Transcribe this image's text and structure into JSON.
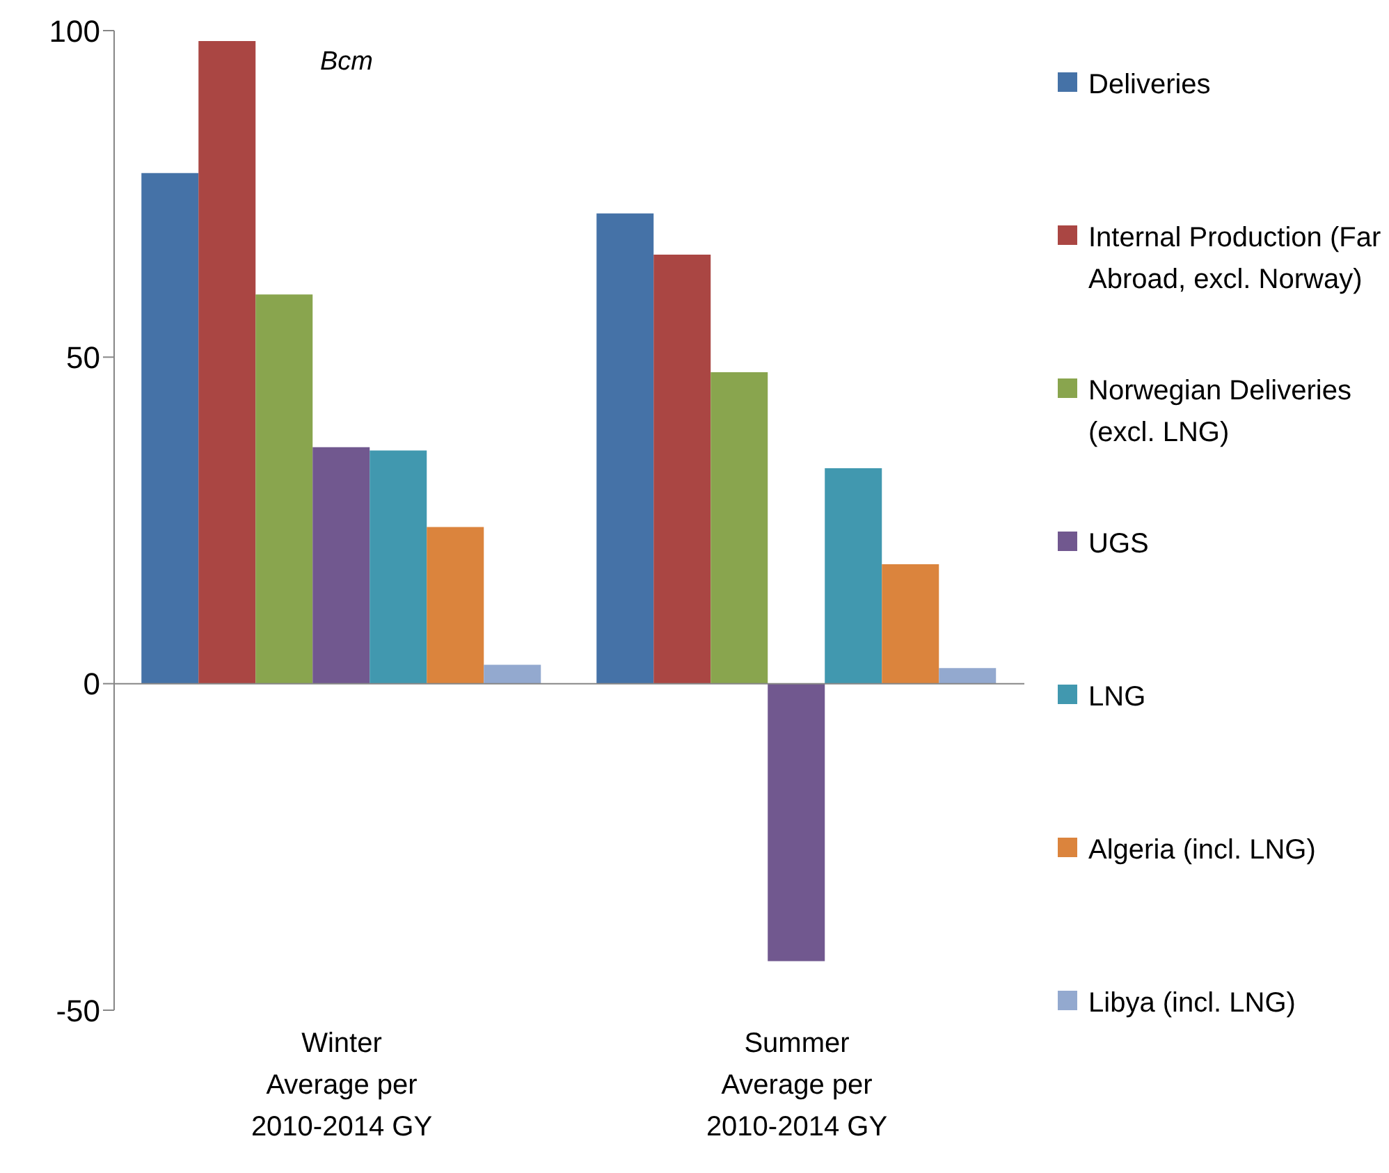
{
  "chart_data": {
    "type": "bar",
    "ylabel": "Bcm",
    "categories": [
      "Winter Average per 2010-2014 GY",
      "Summer Average per 2010-2014 GY"
    ],
    "series": [
      {
        "name": "Deliveries",
        "color": "#4572a7",
        "values": [
          78.2,
          72.0
        ]
      },
      {
        "name": "Internal Production (Far Abroad, excl. Norway)",
        "color": "#aa4643",
        "values": [
          98.4,
          65.7
        ]
      },
      {
        "name": "Norwegian Deliveries (excl. LNG)",
        "color": "#89a54e",
        "values": [
          59.6,
          47.7
        ]
      },
      {
        "name": "UGS",
        "color": "#71588f",
        "values": [
          36.2,
          -42.5
        ]
      },
      {
        "name": "LNG",
        "color": "#4198af",
        "values": [
          35.7,
          33.0
        ]
      },
      {
        "name": "Algeria (incl. LNG)",
        "color": "#db843d",
        "values": [
          24.0,
          18.3
        ]
      },
      {
        "name": "Libya (incl. LNG)",
        "color": "#93a9cf",
        "values": [
          2.9,
          2.4
        ]
      }
    ],
    "ylim": [
      -50,
      100
    ],
    "yticks": [
      -50,
      0,
      50,
      100
    ],
    "legend": "right"
  }
}
